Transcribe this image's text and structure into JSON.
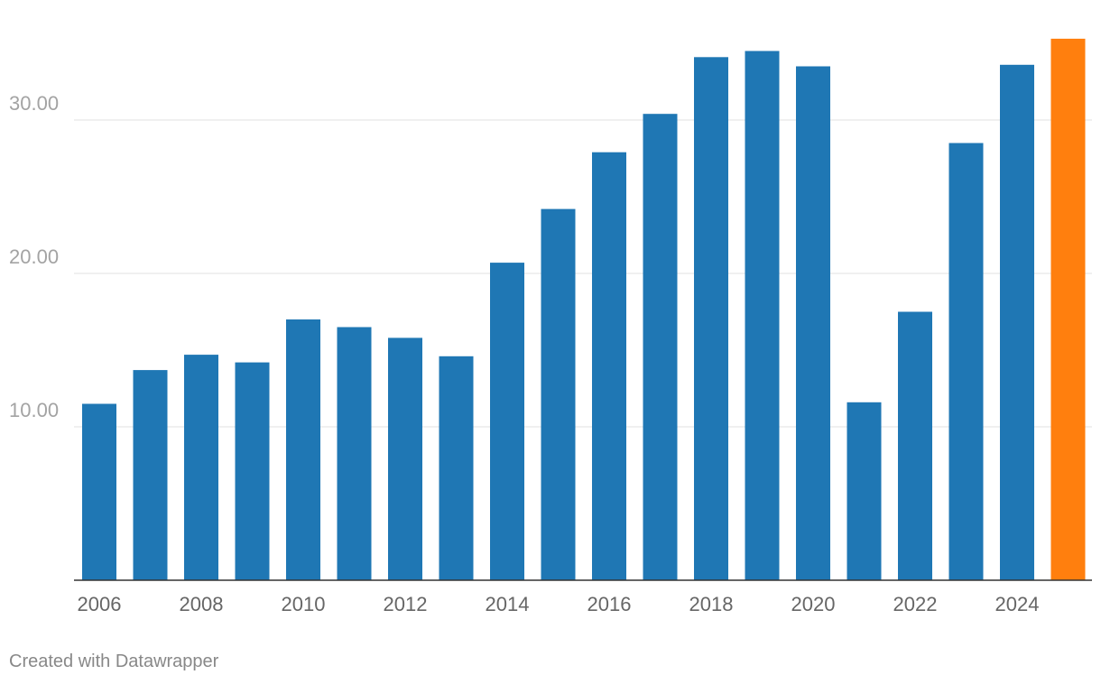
{
  "chart_data": {
    "type": "bar",
    "categories": [
      "2006",
      "2007",
      "2008",
      "2009",
      "2010",
      "2011",
      "2012",
      "2013",
      "2014",
      "2015",
      "2016",
      "2017",
      "2018",
      "2019",
      "2020",
      "2021",
      "2022",
      "2023",
      "2024",
      "2025"
    ],
    "values": [
      11.5,
      13.7,
      14.7,
      14.2,
      17.0,
      16.5,
      15.8,
      14.6,
      20.7,
      24.2,
      27.9,
      30.4,
      34.1,
      34.5,
      33.5,
      11.6,
      17.5,
      28.5,
      33.6,
      35.3
    ],
    "x_tick_labels": [
      "2006",
      "2008",
      "2010",
      "2012",
      "2014",
      "2016",
      "2018",
      "2020",
      "2022",
      "2024"
    ],
    "y_ticks": [
      10,
      20,
      30
    ],
    "y_tick_labels": [
      "10.00",
      "20.00",
      "30.00"
    ],
    "ylim": [
      0,
      36
    ],
    "grid": true,
    "colors": {
      "default": "#1f77b4",
      "highlight": "#ff7f0e",
      "highlight_category": "2025"
    },
    "title": "",
    "xlabel": "",
    "ylabel": ""
  },
  "footer": {
    "credit": "Created with Datawrapper"
  }
}
